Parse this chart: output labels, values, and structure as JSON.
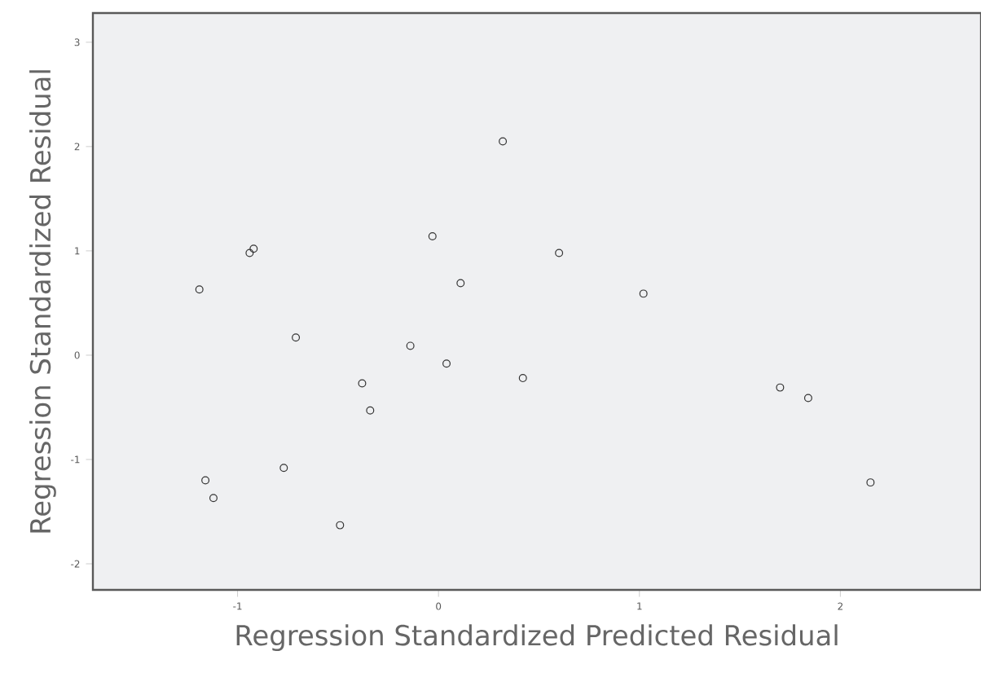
{
  "chart_data": {
    "type": "scatter",
    "xlabel": "Regression Standardized Predicted Residual",
    "ylabel": "Regression Standardized Residual",
    "xlim": [
      -1.72,
      2.7
    ],
    "ylim": [
      -2.25,
      3.28
    ],
    "xticks": [
      -1,
      0,
      1,
      2
    ],
    "yticks": [
      -2,
      -1,
      0,
      1,
      2,
      3
    ],
    "marker": "circle",
    "grid": false,
    "x": [
      -1.19,
      -0.94,
      -0.92,
      -0.71,
      -1.16,
      -1.12,
      -0.77,
      -0.49,
      -0.38,
      -0.34,
      -0.14,
      -0.03,
      0.04,
      0.11,
      0.32,
      0.42,
      0.6,
      1.02,
      1.7,
      1.84,
      2.15
    ],
    "values": [
      0.63,
      0.98,
      1.02,
      0.17,
      -1.2,
      -1.37,
      -1.08,
      -1.63,
      -0.27,
      -0.53,
      0.09,
      1.14,
      -0.08,
      0.69,
      2.05,
      -0.22,
      0.98,
      0.59,
      -0.31,
      -0.41,
      -1.22
    ],
    "color": "#333333"
  }
}
